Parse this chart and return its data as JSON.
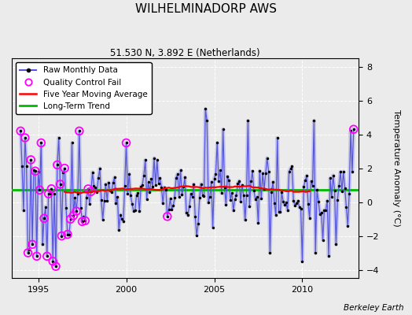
{
  "title": "WILHELMINADORP AWS",
  "subtitle": "51.530 N, 3.892 E (Netherlands)",
  "ylabel": "Temperature Anomaly (°C)",
  "credit": "Berkeley Earth",
  "xlim": [
    1993.5,
    2013.2
  ],
  "ylim": [
    -4.5,
    8.5
  ],
  "yticks": [
    -4,
    -2,
    0,
    2,
    4,
    6,
    8
  ],
  "xticks": [
    1995,
    2000,
    2005,
    2010
  ],
  "long_term_trend_y": 0.72,
  "bg_color": "#ebebeb",
  "plot_bg": "#ebebeb",
  "raw_color": "#5555dd",
  "raw_lw": 0.9,
  "raw_shadow_lw": 3.5,
  "raw_shadow_alpha": 0.25,
  "raw_marker_color": "black",
  "raw_marker_size": 2.5,
  "ma_color": "red",
  "ma_lw": 1.6,
  "trend_color": "#00bb00",
  "trend_lw": 2.0,
  "qc_color": "magenta",
  "qc_size": 7,
  "grid_color": "#ffffff",
  "title_fontsize": 11,
  "subtitle_fontsize": 8.5,
  "ylabel_fontsize": 8,
  "tick_fontsize": 8,
  "legend_fontsize": 7.5,
  "credit_fontsize": 7.5
}
